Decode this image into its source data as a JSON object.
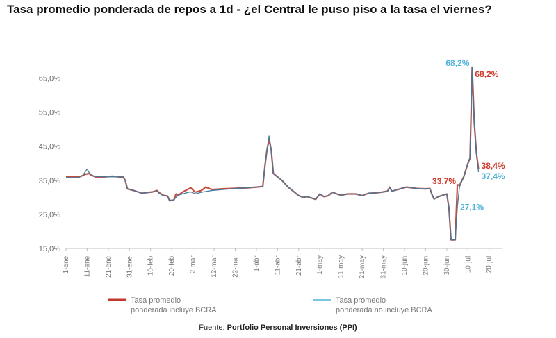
{
  "chart_data": {
    "type": "line",
    "title": "Tasa promedio ponderada de repos a 1d - ¿el Central le puso piso a la tasa el viernes?",
    "ylim": [
      15,
      70
    ],
    "yticks": [
      "15,0%",
      "25,0%",
      "35,0%",
      "45,0%",
      "55,0%",
      "65,0%"
    ],
    "ytick_values": [
      15,
      25,
      35,
      45,
      55,
      65
    ],
    "xlim": [
      0,
      206
    ],
    "xticks": [
      {
        "label": "1-ene.",
        "x": 0
      },
      {
        "label": "11-ene.",
        "x": 10
      },
      {
        "label": "21-ene.",
        "x": 20
      },
      {
        "label": "31-ene.",
        "x": 30
      },
      {
        "label": "10-feb.",
        "x": 40
      },
      {
        "label": "20-feb.",
        "x": 50
      },
      {
        "label": "2-mar.",
        "x": 60
      },
      {
        "label": "12-mar.",
        "x": 70
      },
      {
        "label": "22-mar.",
        "x": 80
      },
      {
        "label": "1-abr.",
        "x": 90
      },
      {
        "label": "11-abr.",
        "x": 100
      },
      {
        "label": "21-abr.",
        "x": 110
      },
      {
        "label": "1-may.",
        "x": 120
      },
      {
        "label": "11-may.",
        "x": 130
      },
      {
        "label": "21-may.",
        "x": 140
      },
      {
        "label": "31-may.",
        "x": 150
      },
      {
        "label": "10-jun.",
        "x": 160
      },
      {
        "label": "20-jun.",
        "x": 170
      },
      {
        "label": "30-jun.",
        "x": 180
      },
      {
        "label": "10-jul.",
        "x": 190
      },
      {
        "label": "20-jul.",
        "x": 200
      }
    ],
    "grid": false,
    "legend_position": "bottom",
    "series": [
      {
        "name": "Tasa promedio ponderada incluye BCRA",
        "color": "#c0392b",
        "points": [
          [
            0,
            36
          ],
          [
            3,
            36
          ],
          [
            6,
            36
          ],
          [
            8,
            36.4
          ],
          [
            9,
            36.8
          ],
          [
            11,
            37
          ],
          [
            12,
            36.5
          ],
          [
            14,
            36
          ],
          [
            18,
            36
          ],
          [
            22,
            36.2
          ],
          [
            25,
            36
          ],
          [
            27,
            36
          ],
          [
            28,
            35
          ],
          [
            29,
            32.5
          ],
          [
            32,
            32
          ],
          [
            34,
            31.6
          ],
          [
            36,
            31.2
          ],
          [
            38,
            31.4
          ],
          [
            41,
            31.6
          ],
          [
            43,
            32
          ],
          [
            44,
            31.4
          ],
          [
            46,
            30.6
          ],
          [
            48,
            30.4
          ],
          [
            49,
            29
          ],
          [
            51,
            29.2
          ],
          [
            52,
            31
          ],
          [
            53,
            30.6
          ],
          [
            55,
            31.5
          ],
          [
            58,
            32.5
          ],
          [
            59,
            32.8
          ],
          [
            61,
            31.5
          ],
          [
            64,
            32
          ],
          [
            66,
            33
          ],
          [
            69,
            32.3
          ],
          [
            74,
            32.5
          ],
          [
            78,
            32.6
          ],
          [
            82,
            32.7
          ],
          [
            86,
            32.8
          ],
          [
            90,
            33
          ],
          [
            93,
            33.2
          ],
          [
            94,
            39
          ],
          [
            95,
            44
          ],
          [
            96,
            47
          ],
          [
            97,
            44
          ],
          [
            98,
            37
          ],
          [
            100,
            36
          ],
          [
            102,
            35
          ],
          [
            105,
            33
          ],
          [
            107,
            32
          ],
          [
            110,
            30.5
          ],
          [
            112,
            30
          ],
          [
            114,
            30.2
          ],
          [
            117,
            29.6
          ],
          [
            118,
            29.4
          ],
          [
            120,
            31
          ],
          [
            122,
            30.2
          ],
          [
            124,
            30.5
          ],
          [
            126,
            31.5
          ],
          [
            128,
            31
          ],
          [
            130,
            30.6
          ],
          [
            133,
            31
          ],
          [
            137,
            31
          ],
          [
            140,
            30.5
          ],
          [
            143,
            31.2
          ],
          [
            146,
            31.3
          ],
          [
            149,
            31.5
          ],
          [
            152,
            31.8
          ],
          [
            153,
            33
          ],
          [
            154,
            31.8
          ],
          [
            158,
            32.5
          ],
          [
            161,
            33
          ],
          [
            166,
            32.6
          ],
          [
            170,
            32.5
          ],
          [
            172,
            32.6
          ],
          [
            173,
            30.8
          ],
          [
            174,
            29.5
          ],
          [
            176,
            30.2
          ],
          [
            180,
            31
          ],
          [
            181,
            27
          ],
          [
            182,
            17.5
          ],
          [
            184,
            17.5
          ],
          [
            185,
            33.7
          ],
          [
            186,
            33.5
          ],
          [
            188,
            36
          ],
          [
            190,
            40
          ],
          [
            191,
            41.5
          ],
          [
            192,
            68.2
          ],
          [
            193,
            52
          ],
          [
            194,
            43
          ],
          [
            195,
            38.4
          ]
        ]
      },
      {
        "name": "Tasa promedio ponderada no incluye BCRA",
        "color": "#4fb3d9",
        "points": [
          [
            0,
            35.8
          ],
          [
            3,
            35.8
          ],
          [
            6,
            35.8
          ],
          [
            8,
            36.5
          ],
          [
            10,
            38.3
          ],
          [
            11,
            37.2
          ],
          [
            13,
            36.2
          ],
          [
            18,
            36
          ],
          [
            22,
            36
          ],
          [
            25,
            36
          ],
          [
            27,
            36
          ],
          [
            28,
            35
          ],
          [
            29,
            32.5
          ],
          [
            32,
            32
          ],
          [
            34,
            31.6
          ],
          [
            36,
            31.2
          ],
          [
            38,
            31.4
          ],
          [
            41,
            31.6
          ],
          [
            43,
            31.8
          ],
          [
            44,
            31.2
          ],
          [
            46,
            30.5
          ],
          [
            48,
            30.3
          ],
          [
            49,
            29.2
          ],
          [
            51,
            29.2
          ],
          [
            52,
            30
          ],
          [
            53,
            30.6
          ],
          [
            55,
            31
          ],
          [
            58,
            31.5
          ],
          [
            59,
            31.6
          ],
          [
            61,
            31
          ],
          [
            64,
            31.5
          ],
          [
            66,
            31.7
          ],
          [
            69,
            32
          ],
          [
            74,
            32.3
          ],
          [
            78,
            32.5
          ],
          [
            82,
            32.7
          ],
          [
            86,
            32.8
          ],
          [
            90,
            33
          ],
          [
            93,
            33.2
          ],
          [
            94,
            39
          ],
          [
            95,
            44
          ],
          [
            96,
            48
          ],
          [
            97,
            44
          ],
          [
            98,
            37
          ],
          [
            100,
            36
          ],
          [
            102,
            35
          ],
          [
            105,
            33
          ],
          [
            107,
            32
          ],
          [
            110,
            30.5
          ],
          [
            112,
            30
          ],
          [
            114,
            30.2
          ],
          [
            117,
            29.6
          ],
          [
            118,
            29.4
          ],
          [
            120,
            31
          ],
          [
            122,
            30.2
          ],
          [
            124,
            30.5
          ],
          [
            126,
            31.5
          ],
          [
            128,
            31
          ],
          [
            130,
            30.6
          ],
          [
            133,
            31
          ],
          [
            137,
            31
          ],
          [
            140,
            30.5
          ],
          [
            143,
            31.2
          ],
          [
            146,
            31.3
          ],
          [
            149,
            31.5
          ],
          [
            152,
            31.8
          ],
          [
            153,
            33
          ],
          [
            154,
            31.8
          ],
          [
            158,
            32.5
          ],
          [
            161,
            33
          ],
          [
            166,
            32.6
          ],
          [
            170,
            32.5
          ],
          [
            172,
            32.6
          ],
          [
            173,
            30.8
          ],
          [
            174,
            29.5
          ],
          [
            176,
            30.2
          ],
          [
            180,
            31
          ],
          [
            181,
            27
          ],
          [
            182,
            17.5
          ],
          [
            184,
            17.5
          ],
          [
            185,
            27.1
          ],
          [
            186,
            33
          ],
          [
            188,
            36
          ],
          [
            190,
            40
          ],
          [
            191,
            41.5
          ],
          [
            192,
            68.2
          ],
          [
            193,
            52
          ],
          [
            194,
            43
          ],
          [
            195,
            37.4
          ]
        ]
      }
    ],
    "annotations": [
      {
        "text": "68,2%",
        "color": "#4fb3d9",
        "x": 192,
        "y": 68.2,
        "anchor": "end",
        "dx": -4,
        "dy": -2
      },
      {
        "text": "68,2%",
        "color": "#d0392b",
        "x": 192,
        "y": 68.2,
        "anchor": "start",
        "dx": 4,
        "dy": 14
      },
      {
        "text": "33,7%",
        "color": "#d0392b",
        "x": 185,
        "y": 33.7,
        "anchor": "end",
        "dx": -2,
        "dy": -1
      },
      {
        "text": "27,1%",
        "color": "#4fb3d9",
        "x": 185,
        "y": 27.1,
        "anchor": "start",
        "dx": 4,
        "dy": 4
      },
      {
        "text": "38,4%",
        "color": "#d0392b",
        "x": 195,
        "y": 38.4,
        "anchor": "start",
        "dx": 4,
        "dy": 0
      },
      {
        "text": "37,4%",
        "color": "#4fb3d9",
        "x": 195,
        "y": 37.4,
        "anchor": "start",
        "dx": 4,
        "dy": 10
      }
    ]
  },
  "legend": {
    "items": [
      {
        "line1": "Tasa promedio",
        "line2": "ponderada incluye BCRA",
        "color": "#c0392b"
      },
      {
        "line1": "Tasa promedio",
        "line2": "ponderada no incluye BCRA",
        "color": "#4fb3d9"
      }
    ]
  },
  "source": {
    "prefix": "Fuente: ",
    "name": "Portfolio Personal Inversiones (PPI)"
  }
}
